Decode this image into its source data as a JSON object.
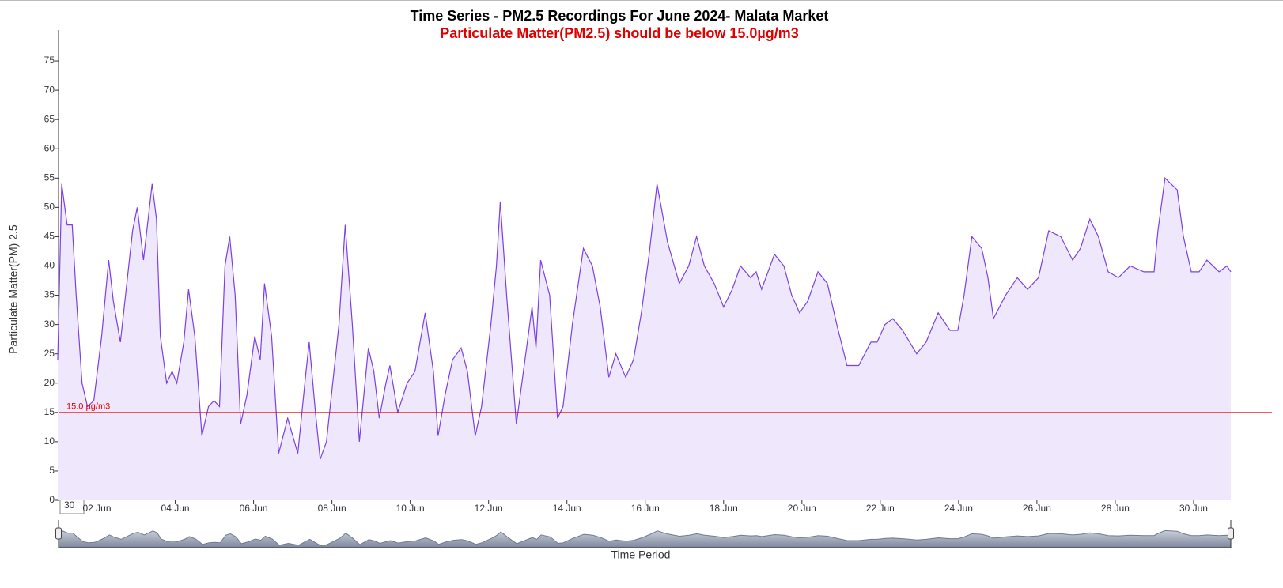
{
  "chart_data": {
    "type": "area",
    "title": "Time Series - PM2.5 Recordings For June 2024- Malata Market",
    "subtitle": "Particulate Matter(PM2.5) should be below 15.0µg/m3",
    "y_label": "Particulate Matter(PM) 2.5",
    "x_label": "Time Period",
    "threshold": 15,
    "threshold_label": "15.0 µg/m3",
    "zoom_input": "30",
    "line_color": "#7b3fe4",
    "fill_color": "#efe8fd",
    "threshold_color": "#e00000",
    "xlim": [
      1,
      32
    ],
    "xticks": [
      {
        "value": 2,
        "label": "02 Jun"
      },
      {
        "value": 4,
        "label": "04 Jun"
      },
      {
        "value": 6,
        "label": "06 Jun"
      },
      {
        "value": 8,
        "label": "08 Jun"
      },
      {
        "value": 10,
        "label": "10 Jun"
      },
      {
        "value": 12,
        "label": "12 Jun"
      },
      {
        "value": 14,
        "label": "14 Jun"
      },
      {
        "value": 16,
        "label": "16 Jun"
      },
      {
        "value": 18,
        "label": "18 Jun"
      },
      {
        "value": 20,
        "label": "20 Jun"
      },
      {
        "value": 22,
        "label": "22 Jun"
      },
      {
        "value": 24,
        "label": "24 Jun"
      },
      {
        "value": 26,
        "label": "26 Jun"
      },
      {
        "value": 28,
        "label": "28 Jun"
      },
      {
        "value": 30,
        "label": "30 Jun"
      }
    ],
    "ylim": [
      0,
      80
    ],
    "yticks": [
      0,
      5,
      10,
      15,
      20,
      25,
      30,
      35,
      40,
      45,
      50,
      55,
      60,
      65,
      70,
      75
    ],
    "x": [
      1.0,
      1.1,
      1.24,
      1.37,
      1.47,
      1.62,
      1.76,
      1.92,
      2.12,
      2.3,
      2.42,
      2.6,
      2.73,
      2.91,
      3.03,
      3.19,
      3.41,
      3.52,
      3.62,
      3.78,
      3.92,
      4.04,
      4.22,
      4.34,
      4.5,
      4.68,
      4.85,
      4.99,
      5.13,
      5.27,
      5.39,
      5.53,
      5.67,
      5.83,
      6.03,
      6.17,
      6.28,
      6.46,
      6.64,
      6.87,
      7.13,
      7.34,
      7.42,
      7.58,
      7.7,
      7.86,
      8.02,
      8.18,
      8.34,
      8.52,
      8.7,
      8.93,
      9.07,
      9.21,
      9.38,
      9.48,
      9.68,
      9.92,
      10.12,
      10.38,
      10.59,
      10.71,
      10.89,
      11.08,
      11.3,
      11.46,
      11.66,
      11.82,
      12.06,
      12.2,
      12.3,
      12.46,
      12.71,
      12.89,
      13.11,
      13.21,
      13.33,
      13.56,
      13.76,
      13.9,
      14.14,
      14.42,
      14.65,
      14.85,
      15.07,
      15.25,
      15.5,
      15.7,
      15.9,
      16.1,
      16.3,
      16.57,
      16.87,
      17.11,
      17.31,
      17.51,
      17.76,
      18.0,
      18.22,
      18.43,
      18.69,
      18.83,
      18.97,
      19.3,
      19.54,
      19.74,
      19.94,
      20.15,
      20.41,
      20.65,
      20.89,
      21.15,
      21.45,
      21.76,
      21.92,
      22.12,
      22.32,
      22.57,
      22.93,
      23.17,
      23.48,
      23.78,
      23.98,
      24.14,
      24.34,
      24.59,
      24.75,
      24.89,
      25.2,
      25.5,
      25.76,
      26.04,
      26.3,
      26.61,
      26.91,
      27.11,
      27.35,
      27.57,
      27.82,
      28.08,
      28.38,
      28.73,
      28.99,
      29.09,
      29.27,
      29.58,
      29.74,
      29.94,
      30.14,
      30.34,
      30.65,
      30.85,
      30.95
    ],
    "values": [
      24,
      54,
      47,
      47,
      35,
      20,
      16,
      17,
      28,
      41,
      34,
      27,
      35,
      46,
      50,
      41,
      54,
      48,
      28,
      20,
      22,
      20,
      27,
      36,
      28,
      11,
      16,
      17,
      16,
      40,
      45,
      35,
      13,
      18,
      28,
      24,
      37,
      28,
      8,
      14,
      8,
      22,
      27,
      15,
      7,
      10,
      20,
      30,
      47,
      30,
      10,
      26,
      22,
      14,
      20,
      23,
      15,
      20,
      22,
      32,
      22,
      11,
      18,
      24,
      26,
      22,
      11,
      16,
      30,
      40,
      51,
      35,
      13,
      22,
      33,
      26,
      41,
      35,
      14,
      16,
      30,
      43,
      40,
      33,
      21,
      25,
      21,
      24,
      32,
      42,
      54,
      44,
      37,
      40,
      45,
      40,
      37,
      33,
      36,
      40,
      38,
      39,
      36,
      42,
      40,
      35,
      32,
      34,
      39,
      37,
      30,
      23,
      23,
      27,
      27,
      30,
      31,
      29,
      25,
      27,
      32,
      29,
      29,
      35,
      45,
      43,
      38,
      31,
      35,
      38,
      36,
      38,
      46,
      45,
      41,
      43,
      48,
      45,
      39,
      38,
      40,
      39,
      39,
      46,
      55,
      53,
      45,
      39,
      39,
      41,
      39,
      40,
      39
    ]
  }
}
